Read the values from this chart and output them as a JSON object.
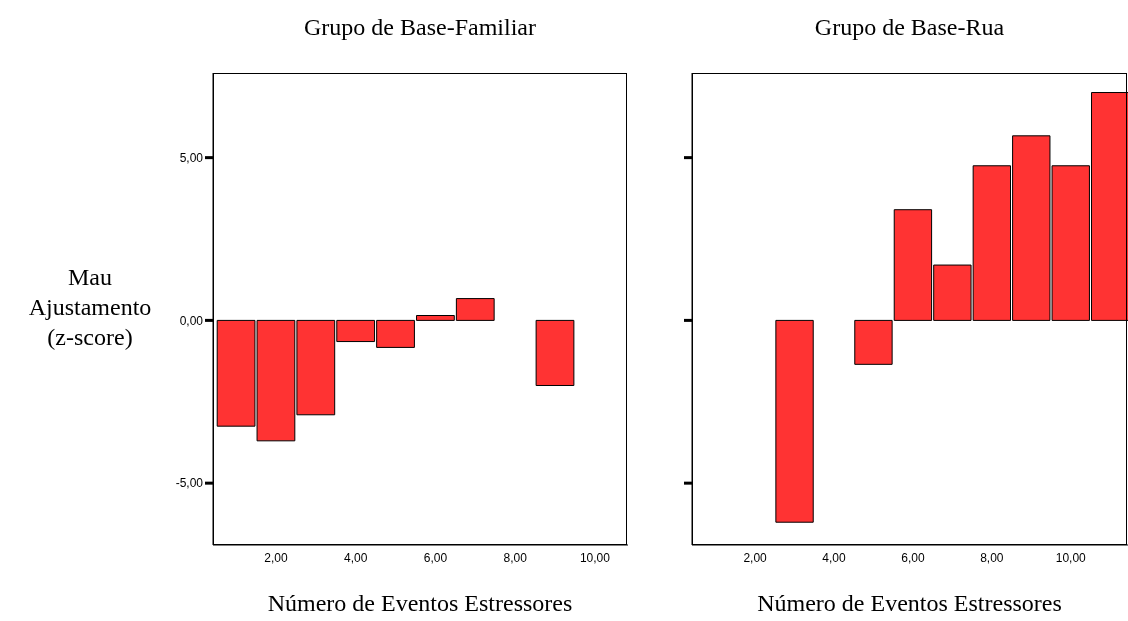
{
  "chart_data": [
    {
      "type": "bar",
      "title": "Grupo de Base-Familiar",
      "xlabel": "Número de Eventos Estressores",
      "ylabel": "Mau Ajustamento (z-score)",
      "x": [
        1,
        2,
        3,
        4,
        5,
        6,
        7,
        9
      ],
      "values": [
        -3.25,
        -3.7,
        -2.9,
        -0.65,
        -0.83,
        0.15,
        0.67,
        -2.0
      ],
      "color": "#ff3333",
      "xlim": [
        0.42,
        10.83
      ],
      "ylim": [
        -6.9,
        7.6
      ],
      "xticks": [
        {
          "value": 2,
          "label": "2,00"
        },
        {
          "value": 4,
          "label": "4,00"
        },
        {
          "value": 6,
          "label": "6,00"
        },
        {
          "value": 8,
          "label": "8,00"
        },
        {
          "value": 10,
          "label": "10,00"
        }
      ],
      "yticks": [
        {
          "value": -5,
          "label": "-5,00"
        },
        {
          "value": 0,
          "label": "0,00"
        },
        {
          "value": 5,
          "label": "5,00"
        }
      ]
    },
    {
      "type": "bar",
      "title": "Grupo de Base-Rua",
      "xlabel": "Número de Eventos Estressores",
      "x": [
        3,
        5,
        6,
        7,
        8,
        9,
        10,
        11
      ],
      "values": [
        -6.2,
        -1.35,
        3.4,
        1.7,
        4.75,
        5.67,
        4.75,
        7.0
      ],
      "color": "#ff3333",
      "xlim": [
        0.4,
        11.45
      ],
      "ylim": [
        -6.9,
        7.6
      ],
      "xticks": [
        {
          "value": 2,
          "label": "2,00"
        },
        {
          "value": 4,
          "label": "4,00"
        },
        {
          "value": 6,
          "label": "6,00"
        },
        {
          "value": 8,
          "label": "8,00"
        },
        {
          "value": 10,
          "label": "10,00"
        }
      ],
      "yticks": [
        {
          "value": -5,
          "label": null
        },
        {
          "value": 0,
          "label": null
        },
        {
          "value": 5,
          "label": null
        }
      ],
      "tick_labels": "x"
    }
  ]
}
